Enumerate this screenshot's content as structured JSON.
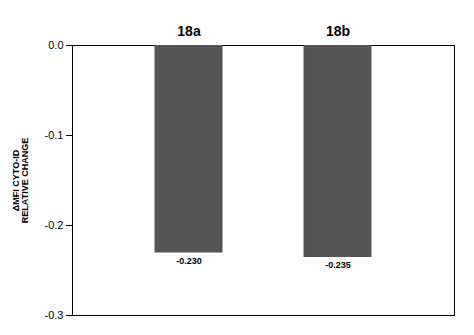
{
  "chart_data": {
    "type": "bar",
    "categories": [
      "18a",
      "18b"
    ],
    "values": [
      -0.23,
      -0.235
    ],
    "value_labels": [
      "-0.230",
      "-0.235"
    ],
    "data_labels": true,
    "color": "#555555",
    "ylabel": "ΔMFI CYTO-ID\nRELATIVE CHANGE",
    "ylim": [
      -0.3,
      0
    ],
    "yticks": [
      {
        "value": 0,
        "label": "0.0"
      },
      -0.1,
      -0.2,
      -0.3
    ],
    "grid": false
  }
}
